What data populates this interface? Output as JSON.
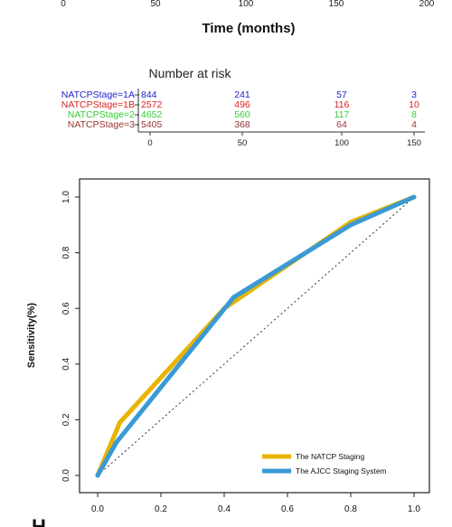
{
  "km_axis": {
    "tick_labels": [
      "0",
      "50",
      "100",
      "150",
      "200"
    ],
    "xlabel": "Time (months)"
  },
  "risk_table": {
    "title": "Number at risk",
    "time_labels": [
      "0",
      "50",
      "100",
      "150"
    ],
    "rows": [
      {
        "label": "NATCPStage=1A",
        "color": "#2222cc",
        "values": [
          "844",
          "241",
          "57",
          "3"
        ]
      },
      {
        "label": "NATCPStage=1B",
        "color": "#dd2222",
        "values": [
          "2572",
          "496",
          "116",
          "10"
        ]
      },
      {
        "label": "NATCPStage=2",
        "color": "#33cc33",
        "values": [
          "4652",
          "560",
          "117",
          "8"
        ]
      },
      {
        "label": "NATCPStage=3",
        "color": "#993333",
        "values": [
          "5405",
          "368",
          "64",
          "4"
        ]
      }
    ]
  },
  "chart_data": {
    "type": "line",
    "title": "",
    "xlabel": "",
    "ylabel": "Sensitivity(%)",
    "xlim": [
      0,
      1
    ],
    "ylim": [
      0,
      1
    ],
    "x_ticks": [
      "0.0",
      "0.2",
      "0.4",
      "0.6",
      "0.8",
      "1.0"
    ],
    "y_ticks": [
      "0.0",
      "0.2",
      "0.4",
      "0.6",
      "0.8",
      "1.0"
    ],
    "legend_position": "bottom-right",
    "grid": false,
    "series": [
      {
        "name": "The NATCP Staging",
        "color": "#e8b400",
        "x": [
          0,
          0.07,
          0.4,
          0.8,
          1.0
        ],
        "y": [
          0,
          0.19,
          0.6,
          0.91,
          1.0
        ]
      },
      {
        "name": "The AJCC Staging System",
        "color": "#3a9ad6",
        "x": [
          0,
          0.06,
          0.43,
          0.8,
          1.0
        ],
        "y": [
          0,
          0.12,
          0.64,
          0.9,
          1.0
        ]
      }
    ],
    "reference_line": {
      "x": [
        0,
        1
      ],
      "y": [
        0,
        1
      ]
    }
  },
  "panel_letter": "H"
}
